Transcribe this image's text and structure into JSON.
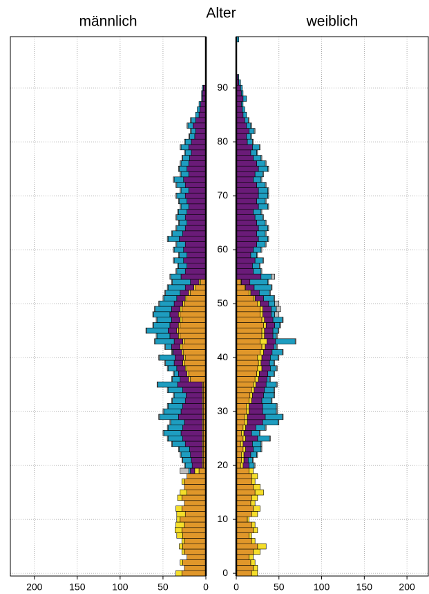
{
  "chart_data": [
    {
      "type": "bar",
      "orientation": "horizontal",
      "reversed": true,
      "title": "männlich",
      "ylabel": "Alter",
      "grid": true,
      "xlim": [
        0,
        228
      ],
      "xticks": [
        0,
        50,
        100,
        150,
        200
      ],
      "ylim": [
        -0.5,
        99.5
      ],
      "yticks": [
        0,
        10,
        20,
        30,
        40,
        50,
        60,
        70,
        80,
        90
      ],
      "y": [
        0,
        1,
        2,
        3,
        4,
        5,
        6,
        7,
        8,
        9,
        10,
        11,
        12,
        13,
        14,
        15,
        16,
        17,
        18,
        19,
        20,
        21,
        22,
        23,
        24,
        25,
        26,
        27,
        28,
        29,
        30,
        31,
        32,
        33,
        34,
        35,
        36,
        37,
        38,
        39,
        40,
        41,
        42,
        43,
        44,
        45,
        46,
        47,
        48,
        49,
        50,
        51,
        52,
        53,
        54,
        55,
        56,
        57,
        58,
        59,
        60,
        61,
        62,
        63,
        64,
        65,
        66,
        67,
        68,
        69,
        70,
        71,
        72,
        73,
        74,
        75,
        76,
        77,
        78,
        79,
        80,
        81,
        82,
        83,
        84,
        85,
        86,
        87,
        88,
        89,
        90,
        91,
        92,
        93,
        94,
        95,
        96,
        97,
        98,
        99
      ],
      "series": [
        {
          "color": "#e0972a",
          "values": [
            28,
            25,
            27,
            22,
            25,
            27,
            25,
            27,
            28,
            25,
            30,
            24,
            28,
            25,
            28,
            22,
            25,
            25,
            22,
            8,
            3,
            3,
            3,
            3,
            3,
            3,
            3,
            3,
            3,
            3,
            3,
            3,
            3,
            3,
            3,
            3,
            18,
            20,
            22,
            25,
            24,
            26,
            28,
            25,
            30,
            32,
            30,
            28,
            30,
            28,
            25,
            22,
            18,
            12,
            6,
            0,
            0,
            0,
            0,
            0,
            0,
            0,
            0,
            0,
            0,
            0,
            0,
            0,
            0,
            0,
            0,
            0,
            0,
            0,
            0,
            0,
            0,
            0,
            0,
            0,
            0,
            0,
            0,
            0,
            0,
            0,
            0,
            0,
            0,
            0,
            0,
            0,
            0,
            0,
            0,
            0,
            0,
            0,
            0,
            0
          ]
        },
        {
          "color": "#f5de2a",
          "values": [
            7,
            0,
            3,
            0,
            3,
            4,
            3,
            7,
            8,
            10,
            4,
            10,
            7,
            0,
            5,
            8,
            0,
            3,
            0,
            5,
            1,
            1,
            1,
            1,
            1,
            1,
            1,
            1,
            1,
            1,
            1,
            1,
            1,
            1,
            1,
            1,
            2,
            2,
            2,
            2,
            2,
            2,
            2,
            2,
            2,
            2,
            2,
            2,
            2,
            2,
            2,
            2,
            2,
            2,
            2,
            0,
            0,
            0,
            0,
            0,
            0,
            0,
            0,
            0,
            0,
            0,
            0,
            0,
            0,
            0,
            0,
            0,
            0,
            0,
            0,
            0,
            0,
            0,
            0,
            0,
            0,
            0,
            0,
            0,
            0,
            0,
            0,
            0,
            0,
            0,
            0,
            0,
            0,
            0,
            0,
            0,
            0,
            0,
            0,
            0
          ]
        },
        {
          "color": "#6a1b78",
          "values": [
            0,
            0,
            0,
            0,
            0,
            0,
            0,
            0,
            0,
            0,
            0,
            0,
            0,
            0,
            0,
            0,
            0,
            0,
            0,
            5,
            12,
            13,
            14,
            15,
            20,
            23,
            25,
            23,
            21,
            28,
            25,
            23,
            20,
            19,
            23,
            29,
            10,
            10,
            10,
            10,
            10,
            10,
            10,
            10,
            10,
            10,
            10,
            10,
            10,
            10,
            10,
            10,
            10,
            10,
            10,
            29,
            24,
            22,
            26,
            22,
            26,
            24,
            31,
            27,
            24,
            22,
            24,
            22,
            20,
            22,
            24,
            20,
            24,
            26,
            20,
            22,
            20,
            19,
            17,
            20,
            17,
            13,
            12,
            15,
            12,
            8,
            7,
            6,
            4,
            4,
            3,
            0,
            0,
            0,
            0,
            0,
            0,
            0,
            0,
            0
          ]
        },
        {
          "color": "#1e9dc0",
          "values": [
            0,
            0,
            0,
            0,
            0,
            0,
            0,
            0,
            0,
            0,
            0,
            0,
            0,
            0,
            0,
            0,
            0,
            0,
            0,
            2,
            8,
            10,
            11,
            12,
            15,
            17,
            20,
            17,
            16,
            22,
            20,
            17,
            15,
            14,
            17,
            23,
            9,
            5,
            10,
            10,
            18,
            1,
            7,
            22,
            15,
            25,
            19,
            17,
            19,
            19,
            17,
            15,
            17,
            20,
            21,
            12,
            10,
            10,
            11,
            9,
            11,
            10,
            13,
            12,
            10,
            9,
            10,
            10,
            9,
            9,
            10,
            9,
            10,
            11,
            9,
            9,
            9,
            8,
            7,
            9,
            7,
            6,
            5,
            6,
            5,
            4,
            3,
            2,
            1,
            1,
            1,
            0,
            0,
            0,
            0,
            0,
            0,
            0,
            0,
            0
          ]
        },
        {
          "color": "#bdbdbd",
          "values": [
            0,
            0,
            0,
            0,
            0,
            0,
            0,
            0,
            0,
            0,
            0,
            0,
            0,
            0,
            0,
            0,
            0,
            0,
            0,
            10,
            1,
            1,
            1,
            1,
            1,
            1,
            1,
            1,
            1,
            1,
            1,
            1,
            1,
            1,
            1,
            1,
            1,
            1,
            1,
            1,
            1,
            1,
            1,
            1,
            1,
            1,
            1,
            1,
            1,
            1,
            1,
            1,
            1,
            1,
            1,
            1,
            1,
            1,
            1,
            1,
            1,
            1,
            1,
            1,
            1,
            1,
            1,
            1,
            1,
            1,
            1,
            1,
            1,
            1,
            1,
            1,
            1,
            1,
            1,
            1,
            1,
            1,
            1,
            1,
            1,
            0,
            0,
            0,
            0,
            0,
            0,
            0,
            0,
            0,
            0,
            0,
            0,
            0,
            0,
            0
          ]
        }
      ]
    },
    {
      "type": "bar",
      "orientation": "horizontal",
      "reversed": false,
      "title": "weiblich",
      "grid": true,
      "xlim": [
        0,
        225
      ],
      "xticks": [
        0,
        50,
        100,
        150,
        200
      ],
      "ylim": [
        -0.5,
        99.5
      ],
      "yticks": [
        0,
        10,
        20,
        30,
        40,
        50,
        60,
        70,
        80,
        90
      ],
      "y": [
        0,
        1,
        2,
        3,
        4,
        5,
        6,
        7,
        8,
        9,
        10,
        11,
        12,
        13,
        14,
        15,
        16,
        17,
        18,
        19,
        20,
        21,
        22,
        23,
        24,
        25,
        26,
        27,
        28,
        29,
        30,
        31,
        32,
        33,
        34,
        35,
        36,
        37,
        38,
        39,
        40,
        41,
        42,
        43,
        44,
        45,
        46,
        47,
        48,
        49,
        50,
        51,
        52,
        53,
        54,
        55,
        56,
        57,
        58,
        59,
        60,
        61,
        62,
        63,
        64,
        65,
        66,
        67,
        68,
        69,
        70,
        71,
        72,
        73,
        74,
        75,
        76,
        77,
        78,
        79,
        80,
        81,
        82,
        83,
        84,
        85,
        86,
        87,
        88,
        89,
        90,
        91,
        92,
        93,
        94,
        95,
        96,
        97,
        98,
        99
      ],
      "series": [
        {
          "color": "#e0972a",
          "values": [
            18,
            20,
            17,
            15,
            20,
            25,
            18,
            15,
            20,
            18,
            13,
            18,
            20,
            17,
            18,
            22,
            20,
            18,
            18,
            15,
            5,
            6,
            6,
            8,
            5,
            8,
            6,
            8,
            10,
            10,
            12,
            12,
            15,
            16,
            18,
            20,
            22,
            24,
            25,
            26,
            25,
            28,
            30,
            28,
            30,
            30,
            32,
            30,
            28,
            28,
            25,
            20,
            15,
            10,
            5,
            0,
            0,
            0,
            0,
            0,
            0,
            0,
            0,
            0,
            0,
            0,
            0,
            0,
            0,
            0,
            0,
            0,
            0,
            0,
            0,
            0,
            0,
            0,
            0,
            0,
            0,
            0,
            0,
            0,
            0,
            0,
            0,
            0,
            0,
            0,
            0,
            0,
            0,
            0,
            0,
            0,
            0,
            0,
            0,
            0
          ]
        },
        {
          "color": "#f5de2a",
          "values": [
            7,
            5,
            5,
            5,
            8,
            10,
            4,
            3,
            5,
            4,
            2,
            7,
            8,
            5,
            7,
            10,
            8,
            4,
            7,
            5,
            3,
            3,
            3,
            3,
            3,
            3,
            3,
            3,
            3,
            3,
            3,
            3,
            3,
            3,
            3,
            3,
            4,
            3,
            5,
            3,
            5,
            4,
            4,
            8,
            3,
            3,
            3,
            3,
            3,
            3,
            3,
            2,
            2,
            1,
            1,
            0,
            0,
            0,
            0,
            0,
            0,
            0,
            0,
            0,
            0,
            0,
            0,
            0,
            0,
            0,
            0,
            0,
            0,
            0,
            0,
            0,
            0,
            0,
            0,
            0,
            0,
            0,
            0,
            0,
            0,
            0,
            0,
            0,
            0,
            0,
            0,
            0,
            0,
            0,
            0,
            0,
            0,
            0,
            0,
            0
          ]
        },
        {
          "color": "#6a1b78",
          "values": [
            0,
            0,
            0,
            0,
            0,
            0,
            0,
            0,
            0,
            0,
            0,
            0,
            0,
            0,
            0,
            0,
            0,
            0,
            0,
            0,
            7,
            5,
            8,
            9,
            11,
            14,
            9,
            12,
            18,
            21,
            16,
            16,
            12,
            13,
            12,
            12,
            10,
            10,
            10,
            10,
            10,
            10,
            10,
            10,
            10,
            10,
            10,
            10,
            10,
            10,
            10,
            10,
            10,
            10,
            10,
            29,
            20,
            19,
            22,
            17,
            20,
            24,
            26,
            24,
            26,
            24,
            22,
            20,
            26,
            24,
            26,
            26,
            24,
            20,
            22,
            26,
            24,
            20,
            17,
            19,
            13,
            12,
            15,
            12,
            10,
            8,
            7,
            6,
            8,
            6,
            5,
            3,
            2,
            0,
            0,
            0,
            0,
            0,
            0,
            0
          ]
        },
        {
          "color": "#1e9dc0",
          "values": [
            0,
            0,
            0,
            0,
            0,
            0,
            0,
            0,
            0,
            0,
            0,
            0,
            0,
            0,
            0,
            0,
            0,
            0,
            0,
            0,
            6,
            5,
            7,
            9,
            10,
            14,
            9,
            11,
            18,
            20,
            16,
            16,
            11,
            12,
            11,
            12,
            3,
            7,
            7,
            5,
            9,
            12,
            3,
            23,
            4,
            6,
            6,
            11,
            4,
            6,
            7,
            12,
            12,
            20,
            21,
            12,
            9,
            8,
            9,
            7,
            9,
            10,
            11,
            10,
            11,
            10,
            9,
            9,
            11,
            10,
            11,
            11,
            10,
            9,
            9,
            11,
            10,
            9,
            7,
            8,
            6,
            5,
            6,
            5,
            4,
            4,
            3,
            2,
            4,
            2,
            2,
            2,
            1,
            0,
            0,
            0,
            0,
            0,
            0,
            3
          ]
        },
        {
          "color": "#bdbdbd",
          "values": [
            0,
            0,
            0,
            0,
            0,
            0,
            0,
            0,
            0,
            0,
            0,
            0,
            0,
            0,
            0,
            0,
            0,
            0,
            0,
            0,
            1,
            1,
            1,
            1,
            1,
            1,
            1,
            1,
            1,
            1,
            1,
            1,
            1,
            1,
            1,
            1,
            1,
            1,
            1,
            1,
            1,
            1,
            1,
            1,
            1,
            1,
            1,
            1,
            5,
            5,
            5,
            1,
            1,
            1,
            1,
            4,
            1,
            1,
            1,
            1,
            1,
            1,
            1,
            1,
            1,
            1,
            1,
            1,
            1,
            1,
            1,
            1,
            1,
            1,
            1,
            1,
            1,
            1,
            1,
            1,
            1,
            1,
            1,
            1,
            1,
            0,
            0,
            0,
            0,
            0,
            0,
            0,
            0,
            0,
            0,
            0,
            0,
            0,
            0,
            0
          ]
        }
      ]
    }
  ]
}
